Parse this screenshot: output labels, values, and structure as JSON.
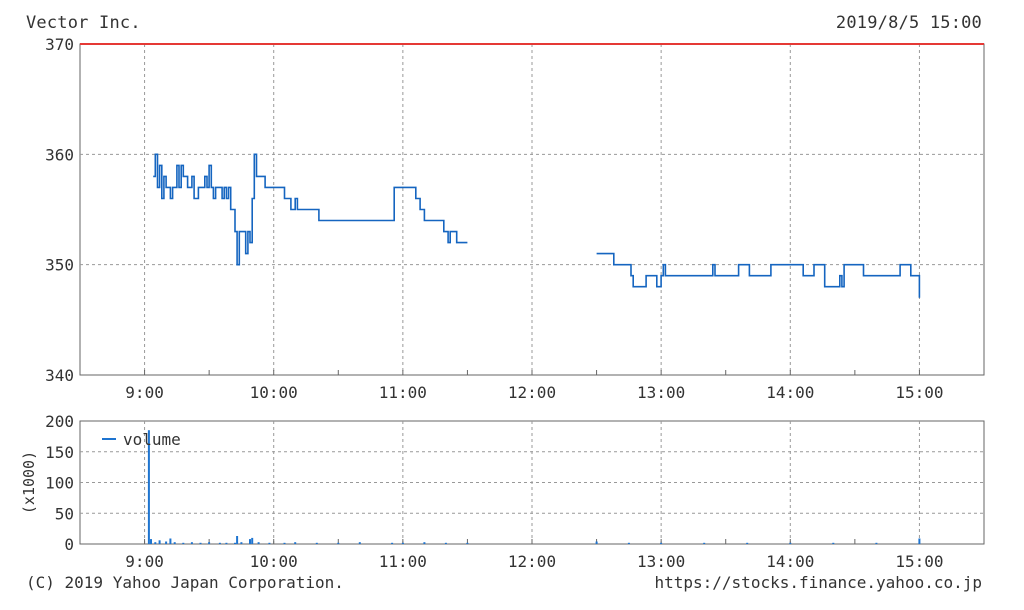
{
  "header": {
    "company": "Vector Inc.",
    "datetime": "2019/8/5 15:00"
  },
  "footer": {
    "copyright": "(C) 2019 Yahoo Japan Corporation.",
    "url": "https://stocks.finance.yahoo.co.jp"
  },
  "colors": {
    "price_line": "#1565c0",
    "volume_bar": "#1e74d0",
    "top_border": "#e53935",
    "grid": "#999999",
    "frame": "#666666"
  },
  "chart_data": [
    {
      "type": "line",
      "name": "price",
      "title": "",
      "ylim": [
        340,
        370
      ],
      "yticks": [
        "340",
        "350",
        "360",
        "370"
      ],
      "xlim": [
        "8:30",
        "15:30"
      ],
      "xticks": [
        "9:00",
        "10:00",
        "11:00",
        "12:00",
        "13:00",
        "14:00",
        "15:00"
      ],
      "grid": true,
      "series": [
        {
          "segment": "morning",
          "points": [
            [
              "9:04",
              358
            ],
            [
              "9:05",
              360
            ],
            [
              "9:06",
              357
            ],
            [
              "9:07",
              359
            ],
            [
              "9:08",
              356
            ],
            [
              "9:09",
              358
            ],
            [
              "9:10",
              357
            ],
            [
              "9:12",
              356
            ],
            [
              "9:13",
              357
            ],
            [
              "9:15",
              359
            ],
            [
              "9:16",
              357
            ],
            [
              "9:17",
              359
            ],
            [
              "9:18",
              358
            ],
            [
              "9:20",
              357
            ],
            [
              "9:22",
              358
            ],
            [
              "9:23",
              356
            ],
            [
              "9:25",
              357
            ],
            [
              "9:27",
              357
            ],
            [
              "9:28",
              358
            ],
            [
              "9:29",
              357
            ],
            [
              "9:30",
              359
            ],
            [
              "9:31",
              357
            ],
            [
              "9:32",
              356
            ],
            [
              "9:33",
              357
            ],
            [
              "9:35",
              357
            ],
            [
              "9:36",
              356
            ],
            [
              "9:37",
              357
            ],
            [
              "9:38",
              356
            ],
            [
              "9:39",
              357
            ],
            [
              "9:40",
              355
            ],
            [
              "9:42",
              353
            ],
            [
              "9:43",
              350
            ],
            [
              "9:44",
              353
            ],
            [
              "9:46",
              353
            ],
            [
              "9:47",
              351
            ],
            [
              "9:48",
              353
            ],
            [
              "9:49",
              352
            ],
            [
              "9:50",
              356
            ],
            [
              "9:51",
              360
            ],
            [
              "9:52",
              358
            ],
            [
              "9:54",
              358
            ],
            [
              "9:56",
              357
            ],
            [
              "10:00",
              357
            ],
            [
              "10:05",
              356
            ],
            [
              "10:08",
              355
            ],
            [
              "10:10",
              356
            ],
            [
              "10:11",
              355
            ],
            [
              "10:20",
              355
            ],
            [
              "10:21",
              354
            ],
            [
              "10:40",
              354
            ],
            [
              "10:55",
              354
            ],
            [
              "10:56",
              357
            ],
            [
              "11:05",
              357
            ],
            [
              "11:06",
              356
            ],
            [
              "11:08",
              355
            ],
            [
              "11:10",
              354
            ],
            [
              "11:18",
              354
            ],
            [
              "11:19",
              353
            ],
            [
              "11:21",
              352
            ],
            [
              "11:22",
              353
            ],
            [
              "11:24",
              353
            ],
            [
              "11:25",
              352
            ],
            [
              "11:30",
              352
            ]
          ]
        },
        {
          "segment": "afternoon",
          "points": [
            [
              "12:30",
              351
            ],
            [
              "12:37",
              351
            ],
            [
              "12:38",
              350
            ],
            [
              "12:45",
              350
            ],
            [
              "12:46",
              349
            ],
            [
              "12:47",
              348
            ],
            [
              "12:52",
              348
            ],
            [
              "12:53",
              349
            ],
            [
              "12:57",
              349
            ],
            [
              "12:58",
              348
            ],
            [
              "13:00",
              349
            ],
            [
              "13:01",
              350
            ],
            [
              "13:02",
              349
            ],
            [
              "13:10",
              349
            ],
            [
              "13:23",
              349
            ],
            [
              "13:24",
              350
            ],
            [
              "13:25",
              349
            ],
            [
              "13:35",
              349
            ],
            [
              "13:36",
              350
            ],
            [
              "13:40",
              350
            ],
            [
              "13:41",
              349
            ],
            [
              "13:50",
              349
            ],
            [
              "13:51",
              350
            ],
            [
              "14:00",
              350
            ],
            [
              "14:05",
              350
            ],
            [
              "14:06",
              349
            ],
            [
              "14:10",
              349
            ],
            [
              "14:11",
              350
            ],
            [
              "14:15",
              350
            ],
            [
              "14:16",
              348
            ],
            [
              "14:22",
              348
            ],
            [
              "14:23",
              349
            ],
            [
              "14:24",
              348
            ],
            [
              "14:25",
              350
            ],
            [
              "14:33",
              350
            ],
            [
              "14:34",
              349
            ],
            [
              "14:50",
              349
            ],
            [
              "14:51",
              350
            ],
            [
              "14:55",
              350
            ],
            [
              "14:56",
              349
            ],
            [
              "14:59",
              349
            ],
            [
              "15:00",
              347
            ]
          ]
        }
      ]
    },
    {
      "type": "bar",
      "name": "volume",
      "legend": "volume",
      "legend_position": "top-left",
      "ylabel": "(x1000)",
      "ylim": [
        0,
        200
      ],
      "yticks": [
        "0",
        "50",
        "100",
        "150",
        "200"
      ],
      "xlim": [
        "8:30",
        "15:30"
      ],
      "xticks": [
        "9:00",
        "10:00",
        "11:00",
        "12:00",
        "13:00",
        "14:00",
        "15:00"
      ],
      "grid": true,
      "bars": [
        [
          "9:02",
          185
        ],
        [
          "9:03",
          8
        ],
        [
          "9:05",
          3
        ],
        [
          "9:07",
          6
        ],
        [
          "9:10",
          4
        ],
        [
          "9:12",
          9
        ],
        [
          "9:14",
          3
        ],
        [
          "9:18",
          2
        ],
        [
          "9:22",
          3
        ],
        [
          "9:26",
          2
        ],
        [
          "9:30",
          3
        ],
        [
          "9:35",
          2
        ],
        [
          "9:38",
          2
        ],
        [
          "9:42",
          2
        ],
        [
          "9:43",
          13
        ],
        [
          "9:45",
          3
        ],
        [
          "9:49",
          8
        ],
        [
          "9:50",
          10
        ],
        [
          "9:53",
          3
        ],
        [
          "9:58",
          2
        ],
        [
          "10:05",
          2
        ],
        [
          "10:10",
          3
        ],
        [
          "10:20",
          2
        ],
        [
          "10:30",
          2
        ],
        [
          "10:40",
          3
        ],
        [
          "10:55",
          2
        ],
        [
          "11:00",
          2
        ],
        [
          "11:10",
          3
        ],
        [
          "11:20",
          2
        ],
        [
          "11:30",
          2
        ],
        [
          "12:30",
          4
        ],
        [
          "12:45",
          2
        ],
        [
          "13:00",
          2
        ],
        [
          "13:20",
          2
        ],
        [
          "13:40",
          2
        ],
        [
          "14:00",
          2
        ],
        [
          "14:20",
          2
        ],
        [
          "14:40",
          2
        ],
        [
          "15:00",
          9
        ]
      ]
    }
  ]
}
